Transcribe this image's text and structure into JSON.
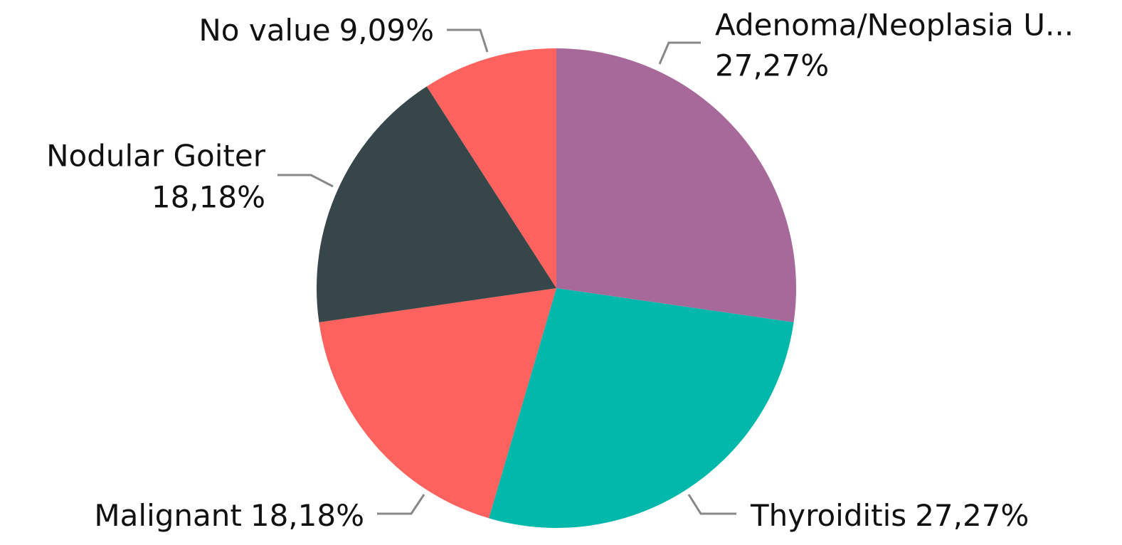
{
  "chart_data": {
    "type": "pie",
    "categories": [
      "Adenoma/Neoplasia U...",
      "Thyroiditis",
      "Malignant",
      "Nodular Goiter",
      "No value"
    ],
    "values": [
      27.27,
      27.27,
      18.18,
      18.18,
      9.09
    ],
    "value_labels": [
      "27,27%",
      "27,27%",
      "18,18%",
      "18,18%",
      "9,09%"
    ],
    "colors": [
      "#a66999",
      "#01b8aa",
      "#fd625e",
      "#374649",
      "#fd625e"
    ]
  }
}
